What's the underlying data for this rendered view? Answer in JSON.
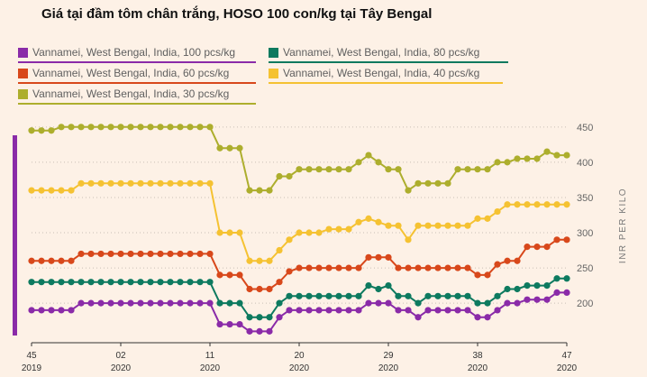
{
  "chart_data": {
    "type": "line",
    "title": "Giá tại đầm tôm chân trắng, HOSO 100 con/kg tại Tây Bengal",
    "xlabel": "",
    "ylabel": "INR PER KILO",
    "ylim": [
      140,
      460
    ],
    "yticks": [
      200,
      250,
      300,
      350,
      400,
      450
    ],
    "xlim": [
      0,
      54
    ],
    "xticks": [
      {
        "x": 0,
        "week": "45",
        "year": "2019"
      },
      {
        "x": 9,
        "week": "02",
        "year": "2020"
      },
      {
        "x": 18,
        "week": "11",
        "year": "2020"
      },
      {
        "x": 27,
        "week": "20",
        "year": "2020"
      },
      {
        "x": 36,
        "week": "29",
        "year": "2020"
      },
      {
        "x": 45,
        "week": "38",
        "year": "2020"
      },
      {
        "x": 54,
        "week": "47",
        "year": "2020"
      }
    ],
    "grid": true,
    "legend_position": "top",
    "series": [
      {
        "name": "Vannamei, West Bengal, India, 100 pcs/kg",
        "color": "#8a2ba8",
        "values": [
          190,
          190,
          190,
          190,
          190,
          200,
          200,
          200,
          200,
          200,
          200,
          200,
          200,
          200,
          200,
          200,
          200,
          200,
          200,
          170,
          170,
          170,
          160,
          160,
          160,
          180,
          190,
          190,
          190,
          190,
          190,
          190,
          190,
          190,
          200,
          200,
          200,
          190,
          190,
          180,
          190,
          190,
          190,
          190,
          190,
          180,
          180,
          190,
          200,
          200,
          205,
          205,
          205,
          215,
          215
        ]
      },
      {
        "name": "Vannamei, West Bengal, India, 80 pcs/kg",
        "color": "#0d7a5f",
        "values": [
          230,
          230,
          230,
          230,
          230,
          230,
          230,
          230,
          230,
          230,
          230,
          230,
          230,
          230,
          230,
          230,
          230,
          230,
          230,
          200,
          200,
          200,
          180,
          180,
          180,
          200,
          210,
          210,
          210,
          210,
          210,
          210,
          210,
          210,
          225,
          220,
          225,
          210,
          210,
          200,
          210,
          210,
          210,
          210,
          210,
          200,
          200,
          210,
          220,
          220,
          225,
          225,
          225,
          235,
          235
        ]
      },
      {
        "name": "Vannamei, West Bengal, India, 60 pcs/kg",
        "color": "#d8481b",
        "values": [
          260,
          260,
          260,
          260,
          260,
          270,
          270,
          270,
          270,
          270,
          270,
          270,
          270,
          270,
          270,
          270,
          270,
          270,
          270,
          240,
          240,
          240,
          220,
          220,
          220,
          230,
          245,
          250,
          250,
          250,
          250,
          250,
          250,
          250,
          265,
          265,
          265,
          250,
          250,
          250,
          250,
          250,
          250,
          250,
          250,
          240,
          240,
          255,
          260,
          260,
          280,
          280,
          280,
          290,
          290
        ]
      },
      {
        "name": "Vannamei, West Bengal, India, 40 pcs/kg",
        "color": "#f5c232",
        "values": [
          360,
          360,
          360,
          360,
          360,
          370,
          370,
          370,
          370,
          370,
          370,
          370,
          370,
          370,
          370,
          370,
          370,
          370,
          370,
          300,
          300,
          300,
          260,
          260,
          260,
          275,
          290,
          300,
          300,
          300,
          305,
          305,
          305,
          315,
          320,
          315,
          310,
          310,
          290,
          310,
          310,
          310,
          310,
          310,
          310,
          320,
          320,
          330,
          340,
          340,
          340,
          340,
          340,
          340,
          340
        ]
      },
      {
        "name": "Vannamei, West Bengal, India, 30 pcs/kg",
        "color": "#adae2d",
        "values": [
          445,
          445,
          445,
          450,
          450,
          450,
          450,
          450,
          450,
          450,
          450,
          450,
          450,
          450,
          450,
          450,
          450,
          450,
          450,
          420,
          420,
          420,
          360,
          360,
          360,
          380,
          380,
          390,
          390,
          390,
          390,
          390,
          390,
          400,
          410,
          400,
          390,
          390,
          360,
          370,
          370,
          370,
          370,
          390,
          390,
          390,
          390,
          400,
          400,
          405,
          405,
          405,
          415,
          410,
          410
        ]
      }
    ]
  }
}
